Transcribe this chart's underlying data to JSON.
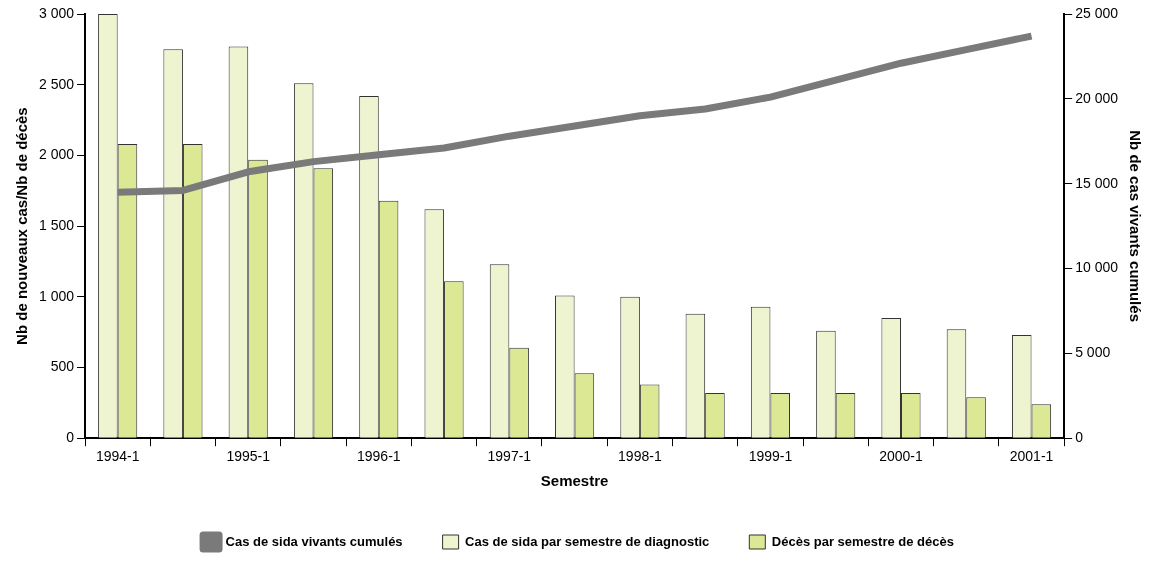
{
  "chart_data": {
    "type": "bar",
    "xlabel": "Semestre",
    "ylabel": "Nb de nouveaux cas/Nb de décès",
    "y2label": "Nb de cas vivants cumulés",
    "categories": [
      "1994-1",
      null,
      "1995-1",
      null,
      "1996-1",
      null,
      "1997-1",
      null,
      "1998-1",
      null,
      "1999-1",
      null,
      "2000-1",
      null,
      "2001-1"
    ],
    "series": [
      {
        "name": "Cas de sida par semestre de diagnostic",
        "color": "#eef4d0",
        "values": [
          3000,
          2750,
          2770,
          2510,
          2420,
          1620,
          1230,
          1010,
          1000,
          880,
          930,
          760,
          850,
          770,
          730
        ]
      },
      {
        "name": "Décès par semestre de décès",
        "color": "#dce893",
        "values": [
          2080,
          2080,
          1970,
          1910,
          1680,
          1110,
          640,
          460,
          380,
          320,
          320,
          320,
          320,
          290,
          240
        ]
      },
      {
        "name": "Cas de sida vivants cumulés",
        "type": "line",
        "axis": "y2",
        "color": "#7a7a7a",
        "values": [
          14500,
          14600,
          15700,
          16300,
          16700,
          17100,
          17800,
          18400,
          19000,
          19400,
          20100,
          21100,
          22100,
          22900,
          23700
        ]
      }
    ],
    "ylim": [
      0,
      3000
    ],
    "yticks": [
      0,
      500,
      {
        "value": 1000,
        "label": "1 000"
      },
      {
        "value": 1500,
        "label": "1 500"
      },
      {
        "value": 2000,
        "label": "2 000"
      },
      {
        "value": 2500,
        "label": "2 500"
      },
      {
        "value": 3000,
        "label": "3 000"
      }
    ],
    "y2lim": [
      0,
      25000
    ],
    "y2ticks": [
      0,
      {
        "value": 5000,
        "label": "5 000"
      },
      {
        "value": 10000,
        "label": "10 000"
      },
      {
        "value": 15000,
        "label": "15 000"
      },
      {
        "value": 20000,
        "label": "20 000"
      },
      {
        "value": 25000,
        "label": "25 000"
      }
    ],
    "grid": false,
    "legend": "bottom",
    "marker": "none"
  }
}
